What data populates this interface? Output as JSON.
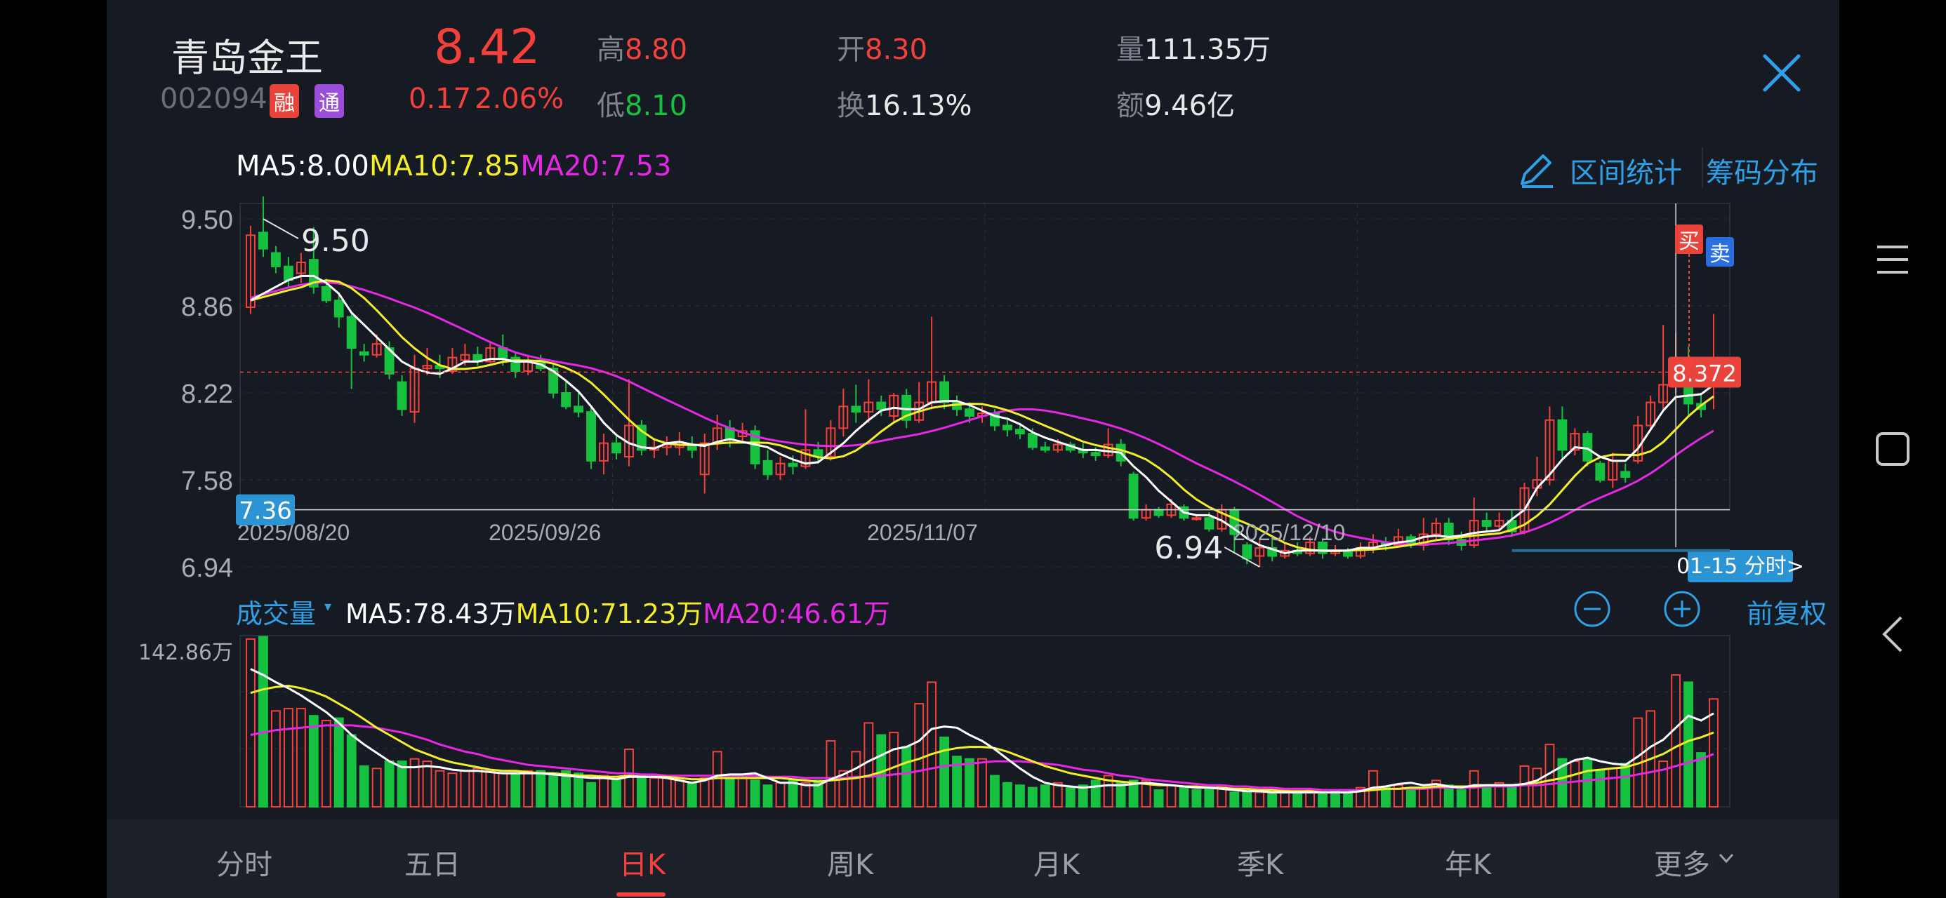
{
  "header": {
    "name": "青岛金王",
    "code": "002094",
    "tags": [
      "融",
      "通"
    ],
    "price": "8.42",
    "change": "0.17",
    "change_pct": "2.06%",
    "high_label": "高",
    "high": "8.80",
    "low_label": "低",
    "low": "8.10",
    "open_label": "开",
    "open": "8.30",
    "turnover_label": "换",
    "turnover": "16.13%",
    "volume_label": "量",
    "volume": "111.35万",
    "amount_label": "额",
    "amount": "9.46亿",
    "close_icon": "close-icon"
  },
  "ma_legend": {
    "ma5": "MA5:8.00",
    "ma10": "MA10:7.85",
    "ma20": "MA20:7.53"
  },
  "tools": {
    "interval_stats": "区间统计",
    "chip_dist": "筹码分布",
    "edit_icon": "pencil-icon"
  },
  "volume_panel": {
    "title": "成交量",
    "ma5": "MA5:78.43万",
    "ma10": "MA10:71.23万",
    "ma20": "MA20:46.61万",
    "max_label": "142.86万",
    "restore": "前复权"
  },
  "tabs": [
    "分时",
    "五日",
    "日K",
    "周K",
    "月K",
    "季K",
    "年K",
    "更多"
  ],
  "active_tab": "日K",
  "colors": {
    "up": "#f5403b",
    "down": "#16c140",
    "ma5": "#ffffff",
    "ma10": "#f2ee2a",
    "ma20": "#e628e6",
    "accent": "#2f9fe6"
  },
  "chart_data": {
    "type": "candlestick",
    "y_ticks": [
      "9.50",
      "8.86",
      "8.22",
      "7.58",
      "6.94"
    ],
    "ylim": [
      6.94,
      9.5
    ],
    "x_labels": [
      {
        "label": "2025/08/20",
        "index": 0
      },
      {
        "label": "2025/09/26",
        "index": 25
      },
      {
        "label": "2025/11/07",
        "index": 55
      },
      {
        "label": "2025/12/10",
        "index": 84
      }
    ],
    "annotations": {
      "max": "9.50",
      "min": "6.94",
      "crosshair_price": "7.36",
      "marker_price": "8.372",
      "buy": "买",
      "sell": "卖",
      "crosshair_date": "01-15 分时>"
    },
    "candles": [
      [
        8.85,
        9.38,
        8.8,
        9.45
      ],
      [
        9.4,
        9.28,
        9.22,
        9.75
      ],
      [
        9.25,
        9.15,
        9.1,
        9.3
      ],
      [
        9.15,
        9.05,
        9.0,
        9.22
      ],
      [
        9.1,
        9.18,
        9.03,
        9.25
      ],
      [
        9.2,
        9.0,
        8.95,
        9.44
      ],
      [
        9.0,
        8.9,
        8.88,
        9.06
      ],
      [
        8.9,
        8.78,
        8.7,
        8.96
      ],
      [
        8.78,
        8.55,
        8.25,
        8.8
      ],
      [
        8.52,
        8.5,
        8.45,
        8.58
      ],
      [
        8.5,
        8.58,
        8.48,
        8.65
      ],
      [
        8.55,
        8.36,
        8.32,
        8.6
      ],
      [
        8.3,
        8.1,
        8.05,
        8.35
      ],
      [
        8.08,
        8.4,
        8.0,
        8.5
      ],
      [
        8.4,
        8.42,
        8.35,
        8.55
      ],
      [
        8.42,
        8.4,
        8.33,
        8.5
      ],
      [
        8.38,
        8.48,
        8.36,
        8.55
      ],
      [
        8.46,
        8.5,
        8.42,
        8.58
      ],
      [
        8.5,
        8.45,
        8.42,
        8.56
      ],
      [
        8.45,
        8.55,
        8.44,
        8.6
      ],
      [
        8.55,
        8.48,
        8.42,
        8.65
      ],
      [
        8.48,
        8.38,
        8.33,
        8.52
      ],
      [
        8.38,
        8.45,
        8.35,
        8.5
      ],
      [
        8.46,
        8.4,
        8.38,
        8.5
      ],
      [
        8.4,
        8.22,
        8.18,
        8.44
      ],
      [
        8.22,
        8.12,
        8.1,
        8.3
      ],
      [
        8.12,
        8.08,
        8.04,
        8.22
      ],
      [
        8.08,
        7.72,
        7.66,
        8.12
      ],
      [
        7.72,
        7.85,
        7.62,
        7.92
      ],
      [
        7.85,
        7.78,
        7.73,
        7.9
      ],
      [
        7.75,
        7.98,
        7.68,
        8.32
      ],
      [
        7.98,
        7.8,
        7.76,
        8.02
      ],
      [
        7.8,
        7.82,
        7.74,
        7.88
      ],
      [
        7.82,
        7.84,
        7.76,
        7.9
      ],
      [
        7.82,
        7.86,
        7.76,
        7.93
      ],
      [
        7.84,
        7.8,
        7.74,
        7.9
      ],
      [
        7.62,
        7.85,
        7.48,
        7.92
      ],
      [
        7.85,
        7.96,
        7.8,
        8.06
      ],
      [
        7.96,
        7.88,
        7.82,
        8.02
      ],
      [
        7.9,
        7.94,
        7.85,
        8.0
      ],
      [
        7.94,
        7.7,
        7.66,
        7.98
      ],
      [
        7.72,
        7.62,
        7.58,
        7.8
      ],
      [
        7.62,
        7.7,
        7.58,
        7.75
      ],
      [
        7.7,
        7.68,
        7.62,
        7.76
      ],
      [
        7.68,
        7.8,
        7.66,
        8.1
      ],
      [
        7.8,
        7.75,
        7.7,
        7.86
      ],
      [
        7.75,
        7.96,
        7.72,
        8.02
      ],
      [
        7.96,
        8.12,
        7.9,
        8.25
      ],
      [
        8.12,
        8.08,
        8.0,
        8.28
      ],
      [
        8.08,
        8.15,
        8.0,
        8.32
      ],
      [
        8.15,
        8.1,
        8.05,
        8.2
      ],
      [
        8.05,
        8.2,
        8.0,
        8.22
      ],
      [
        8.2,
        8.02,
        7.96,
        8.25
      ],
      [
        8.02,
        8.15,
        8.0,
        8.3
      ],
      [
        8.15,
        8.3,
        8.1,
        8.78
      ],
      [
        8.3,
        8.15,
        8.1,
        8.35
      ],
      [
        8.15,
        8.1,
        8.05,
        8.2
      ],
      [
        8.1,
        8.05,
        8.0,
        8.15
      ],
      [
        8.05,
        8.07,
        8.0,
        8.12
      ],
      [
        8.07,
        7.98,
        7.94,
        8.1
      ],
      [
        7.98,
        7.95,
        7.9,
        8.02
      ],
      [
        7.95,
        7.92,
        7.88,
        8.0
      ],
      [
        7.92,
        7.82,
        7.8,
        7.96
      ],
      [
        7.82,
        7.8,
        7.78,
        7.86
      ],
      [
        7.8,
        7.84,
        7.78,
        7.88
      ],
      [
        7.84,
        7.8,
        7.78,
        7.86
      ],
      [
        7.8,
        7.78,
        7.74,
        7.85
      ],
      [
        7.78,
        7.76,
        7.72,
        7.82
      ],
      [
        7.76,
        7.84,
        7.74,
        7.96
      ],
      [
        7.84,
        7.72,
        7.68,
        7.88
      ],
      [
        7.62,
        7.3,
        7.28,
        7.64
      ],
      [
        7.3,
        7.36,
        7.28,
        7.4
      ],
      [
        7.36,
        7.32,
        7.3,
        7.38
      ],
      [
        7.32,
        7.4,
        7.3,
        7.44
      ],
      [
        7.38,
        7.3,
        7.28,
        7.4
      ],
      [
        7.3,
        7.3,
        7.28,
        7.32
      ],
      [
        7.3,
        7.22,
        7.2,
        7.34
      ],
      [
        7.22,
        7.36,
        7.2,
        7.4
      ],
      [
        7.36,
        7.18,
        7.05,
        7.38
      ],
      [
        7.1,
        7.0,
        6.96,
        7.12
      ],
      [
        7.02,
        7.08,
        6.94,
        7.14
      ],
      [
        7.08,
        7.02,
        6.98,
        7.16
      ],
      [
        7.02,
        7.06,
        7.0,
        7.12
      ],
      [
        7.06,
        7.04,
        7.02,
        7.12
      ],
      [
        7.04,
        7.12,
        7.02,
        7.16
      ],
      [
        7.12,
        7.04,
        7.0,
        7.15
      ],
      [
        7.04,
        7.06,
        7.02,
        7.1
      ],
      [
        7.06,
        7.02,
        7.0,
        7.08
      ],
      [
        7.02,
        7.08,
        7.0,
        7.12
      ],
      [
        7.08,
        7.12,
        7.04,
        7.18
      ],
      [
        7.12,
        7.1,
        7.06,
        7.16
      ],
      [
        7.1,
        7.16,
        7.08,
        7.22
      ],
      [
        7.16,
        7.1,
        7.08,
        7.18
      ],
      [
        7.1,
        7.18,
        7.06,
        7.3
      ],
      [
        7.18,
        7.26,
        7.14,
        7.3
      ],
      [
        7.26,
        7.14,
        7.1,
        7.3
      ],
      [
        7.14,
        7.1,
        7.06,
        7.2
      ],
      [
        7.1,
        7.28,
        7.08,
        7.45
      ],
      [
        7.28,
        7.24,
        7.2,
        7.34
      ],
      [
        7.24,
        7.28,
        7.22,
        7.34
      ],
      [
        7.28,
        7.2,
        7.16,
        7.36
      ],
      [
        7.2,
        7.52,
        7.18,
        7.56
      ],
      [
        7.52,
        7.58,
        7.46,
        7.75
      ],
      [
        7.58,
        8.02,
        7.54,
        8.12
      ],
      [
        8.02,
        7.8,
        7.74,
        8.12
      ],
      [
        7.8,
        7.92,
        7.76,
        7.96
      ],
      [
        7.92,
        7.72,
        7.68,
        7.94
      ],
      [
        7.7,
        7.58,
        7.56,
        7.72
      ],
      [
        7.58,
        7.72,
        7.52,
        7.78
      ],
      [
        7.64,
        7.6,
        7.56,
        7.7
      ],
      [
        7.72,
        7.98,
        7.7,
        8.05
      ],
      [
        7.98,
        8.15,
        7.95,
        8.2
      ],
      [
        8.15,
        8.28,
        8.08,
        8.72
      ],
      [
        8.28,
        8.4,
        8.22,
        8.66
      ],
      [
        8.4,
        8.14,
        8.06,
        8.56
      ],
      [
        8.14,
        8.1,
        8.04,
        8.22
      ],
      [
        8.3,
        8.42,
        8.1,
        8.8
      ]
    ],
    "ma5": [
      8.9,
      8.95,
      9.0,
      9.05,
      9.08,
      9.08,
      9.03,
      8.95,
      8.81,
      8.72,
      8.63,
      8.54,
      8.45,
      8.4,
      8.37,
      8.36,
      8.4,
      8.45,
      8.45,
      8.47,
      8.47,
      8.45,
      8.45,
      8.43,
      8.38,
      8.31,
      8.23,
      8.12,
      8.0,
      7.91,
      7.85,
      7.82,
      7.81,
      7.85,
      7.86,
      7.84,
      7.83,
      7.86,
      7.88,
      7.86,
      7.84,
      7.82,
      7.77,
      7.73,
      7.7,
      7.71,
      7.78,
      7.85,
      7.94,
      8.02,
      8.09,
      8.11,
      8.1,
      8.1,
      8.15,
      8.16,
      8.16,
      8.13,
      8.09,
      8.05,
      8.03,
      7.99,
      7.93,
      7.89,
      7.86,
      7.83,
      7.8,
      7.8,
      7.79,
      7.78,
      7.68,
      7.6,
      7.5,
      7.42,
      7.34,
      7.32,
      7.32,
      7.28,
      7.22,
      7.15,
      7.1,
      7.07,
      7.04,
      7.06,
      7.06,
      7.06,
      7.06,
      7.06,
      7.08,
      7.08,
      7.1,
      7.12,
      7.13,
      7.16,
      7.17,
      7.16,
      7.17,
      7.19,
      7.2,
      7.21,
      7.29,
      7.36,
      7.52,
      7.62,
      7.73,
      7.82,
      7.81,
      7.75,
      7.72,
      7.72,
      7.81,
      7.95,
      8.09,
      8.19,
      8.2,
      8.21,
      8.28
    ]
  },
  "volume_data": {
    "ymax": 142.86,
    "up": [
      true,
      false,
      true,
      true,
      true,
      false,
      true,
      false,
      false,
      false,
      true,
      false,
      false,
      true,
      true,
      true,
      true,
      true,
      true,
      true,
      true,
      false,
      true,
      false,
      false,
      false,
      false,
      false,
      true,
      false,
      true,
      false,
      true,
      true,
      true,
      false,
      true,
      true,
      false,
      true,
      false,
      false,
      true,
      false,
      true,
      false,
      true,
      true,
      true,
      true,
      false,
      true,
      false,
      true,
      true,
      false,
      false,
      false,
      true,
      false,
      false,
      false,
      false,
      false,
      true,
      false,
      false,
      false,
      true,
      false,
      false,
      true,
      false,
      true,
      false,
      false,
      false,
      true,
      false,
      false,
      true,
      false,
      true,
      false,
      true,
      false,
      false,
      false,
      true,
      true,
      false,
      true,
      false,
      true,
      true,
      false,
      false,
      true,
      false,
      true,
      false,
      true,
      true,
      true,
      false,
      true,
      false,
      false,
      true,
      false,
      true,
      true,
      true,
      true,
      false,
      false,
      true
    ],
    "vol": [
      140,
      142,
      80,
      82,
      82,
      76,
      72,
      74,
      60,
      34,
      32,
      38,
      38,
      40,
      38,
      30,
      28,
      30,
      32,
      30,
      28,
      28,
      30,
      30,
      28,
      30,
      28,
      20,
      26,
      22,
      48,
      26,
      24,
      24,
      22,
      20,
      24,
      46,
      24,
      26,
      22,
      18,
      20,
      22,
      20,
      22,
      55,
      30,
      46,
      70,
      60,
      62,
      50,
      86,
      104,
      58,
      42,
      40,
      40,
      26,
      20,
      18,
      16,
      18,
      20,
      16,
      18,
      22,
      26,
      20,
      22,
      22,
      14,
      18,
      16,
      14,
      16,
      18,
      12,
      12,
      12,
      12,
      14,
      12,
      14,
      12,
      14,
      12,
      16,
      30,
      16,
      18,
      16,
      16,
      22,
      18,
      14,
      30,
      16,
      20,
      18,
      34,
      32,
      52,
      40,
      38,
      40,
      30,
      32,
      36,
      74,
      80,
      38,
      110,
      104,
      45,
      90
    ],
    "ma5": [
      115,
      110,
      104,
      99,
      93,
      86,
      79,
      70,
      60,
      52,
      45,
      38,
      33,
      33,
      34,
      33,
      31,
      30,
      30,
      29,
      28,
      28,
      28,
      28,
      27,
      26,
      25,
      24,
      24,
      23,
      25,
      25,
      25,
      24,
      22,
      20,
      22,
      26,
      27,
      27,
      28,
      24,
      20,
      20,
      18,
      18,
      23,
      27,
      32,
      38,
      43,
      48,
      50,
      55,
      65,
      67,
      66,
      60,
      55,
      48,
      40,
      32,
      25,
      20,
      18,
      17,
      16,
      17,
      18,
      18,
      19,
      20,
      19,
      18,
      17,
      16,
      16,
      15,
      14,
      13,
      13,
      12,
      12,
      12,
      12,
      12,
      12,
      12,
      13,
      16,
      17,
      19,
      20,
      18,
      19,
      17,
      16,
      18,
      18,
      18,
      18,
      19,
      22,
      28,
      34,
      39,
      41,
      38,
      36,
      35,
      42,
      50,
      56,
      66,
      76,
      72,
      78
    ],
    "ma10": [
      95,
      98,
      100,
      101,
      99,
      96,
      92,
      86,
      80,
      73,
      66,
      60,
      54,
      48,
      44,
      40,
      37,
      35,
      33,
      31,
      30,
      30,
      29,
      28,
      28,
      27,
      26,
      26,
      25,
      25,
      26,
      25,
      25,
      25,
      24,
      23,
      23,
      24,
      24,
      24,
      24,
      24,
      24,
      23,
      22,
      21,
      22,
      23,
      24,
      26,
      29,
      33,
      37,
      40,
      44,
      47,
      49,
      50,
      50,
      49,
      46,
      42,
      38,
      34,
      31,
      28,
      26,
      24,
      22,
      21,
      20,
      19,
      18,
      18,
      17,
      17,
      16,
      16,
      15,
      15,
      14,
      14,
      13,
      13,
      13,
      12,
      12,
      12,
      13,
      14,
      15,
      15,
      16,
      16,
      17,
      17,
      17,
      17,
      18,
      18,
      18,
      19,
      20,
      22,
      24,
      27,
      30,
      31,
      32,
      33,
      36,
      40,
      44,
      50,
      55,
      58,
      62
    ],
    "ma20": [
      60,
      62,
      64,
      65,
      66,
      67,
      68,
      68,
      68,
      67,
      66,
      64,
      62,
      59,
      56,
      52,
      49,
      46,
      44,
      41,
      39,
      37,
      35,
      34,
      33,
      32,
      31,
      30,
      29,
      28,
      28,
      27,
      27,
      26,
      26,
      26,
      26,
      26,
      26,
      26,
      26,
      25,
      25,
      25,
      24,
      24,
      24,
      24,
      25,
      25,
      26,
      27,
      28,
      30,
      32,
      34,
      35,
      36,
      37,
      38,
      38,
      38,
      37,
      36,
      35,
      33,
      31,
      30,
      28,
      26,
      25,
      23,
      22,
      21,
      20,
      19,
      18,
      18,
      17,
      17,
      16,
      16,
      15,
      15,
      15,
      14,
      14,
      14,
      14,
      15,
      15,
      15,
      15,
      15,
      16,
      16,
      16,
      16,
      17,
      17,
      17,
      18,
      18,
      19,
      20,
      21,
      22,
      23,
      24,
      25,
      27,
      29,
      31,
      34,
      37,
      40,
      44
    ]
  }
}
